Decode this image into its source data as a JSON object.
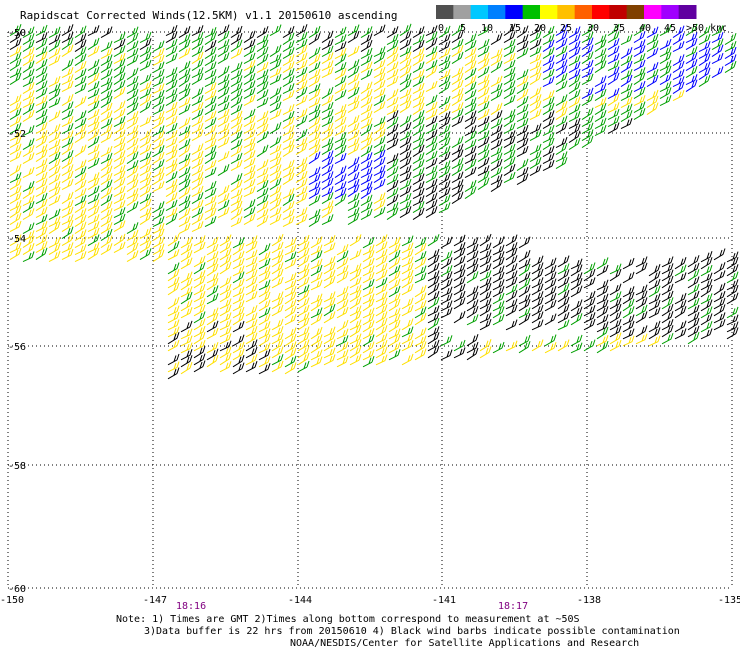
{
  "title": "Rapidscat Corrected Winds(12.5KM) v1.1 20150610 ascending",
  "scale": {
    "labels": [
      "0",
      "5",
      "10",
      "15",
      "20",
      "25",
      "30",
      "35",
      "40",
      "45",
      ">50 knots"
    ],
    "colors": [
      "#505050",
      "#a0a0a0",
      "#00c8ff",
      "#0080ff",
      "#0000ff",
      "#00c000",
      "#ffff00",
      "#ffc000",
      "#ff6000",
      "#ff0000",
      "#c00000",
      "#804000",
      "#ff00ff",
      "#a000ff",
      "#6000a0"
    ]
  },
  "map": {
    "lon_ticks": [
      "-150",
      "-147",
      "-144",
      "-141",
      "-138",
      "-135"
    ],
    "lat_ticks": [
      "-50",
      "-52",
      "-54",
      "-56",
      "-58",
      "-60"
    ],
    "time_labels": [
      "18:16",
      "18:17"
    ],
    "time_label_color": "#800080",
    "barb_colors": {
      "black": "#000000",
      "green": "#00a000",
      "yellow": "#ffe000",
      "blue": "#0000ff"
    }
  },
  "notes": [
    "Note: 1) Times are GMT 2)Times along bottom correspond to measurement at ~50S",
    "3)Data buffer is 22 hrs from 20150610 4) Black wind barbs indicate possible contamination",
    "NOAA/NESDIS/Center for Satellite Applications and Research"
  ]
}
